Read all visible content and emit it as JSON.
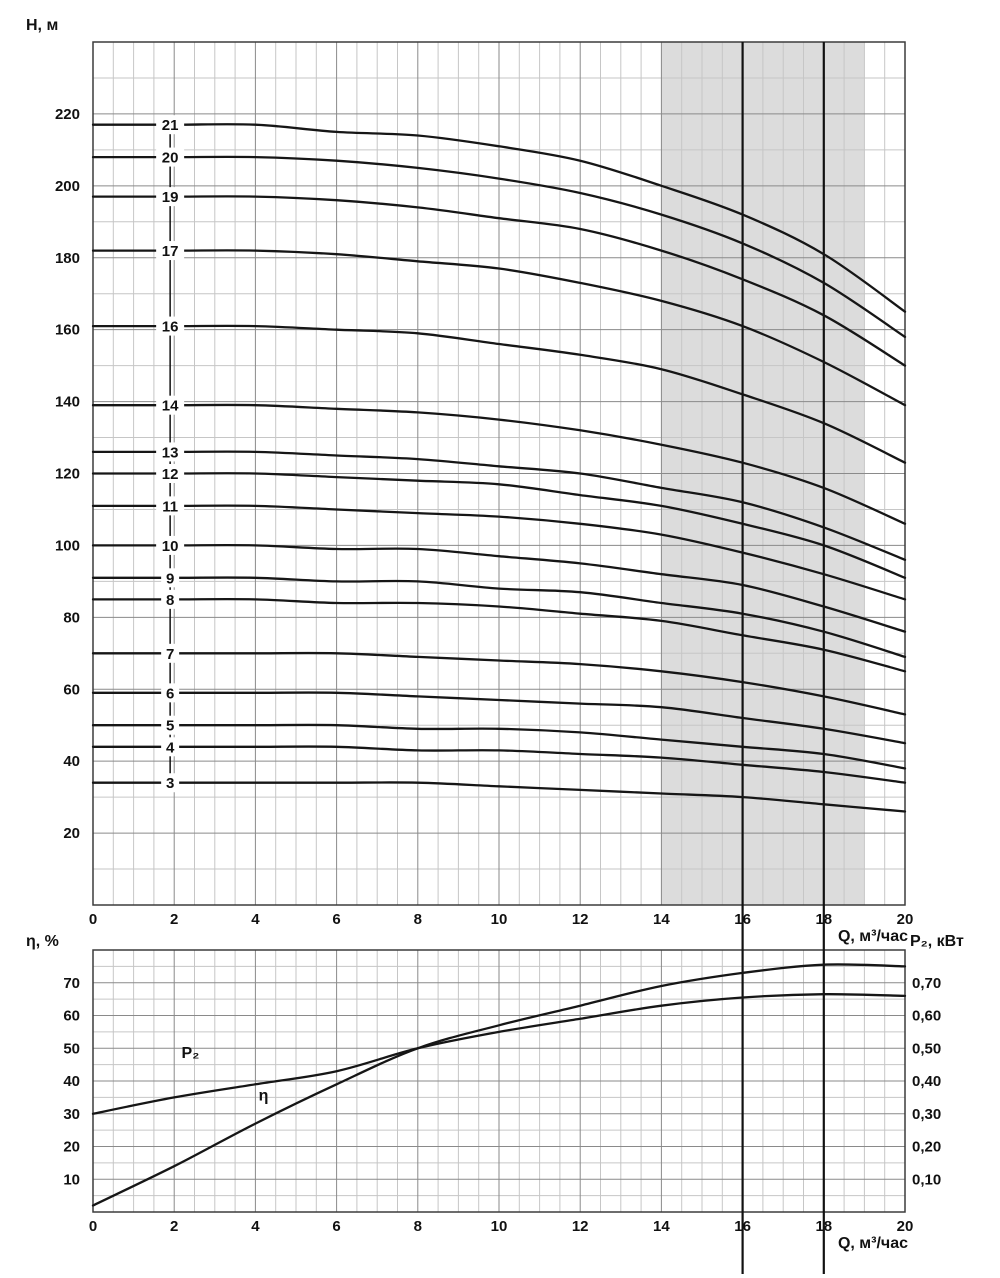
{
  "colors": {
    "background": "#ffffff",
    "curve": "#161616",
    "grid_minor": "#c6c6c6",
    "grid_major": "#8a8a8a",
    "frame": "#3c3c3c",
    "band": "#dcdcdc",
    "marker_line": "#111111",
    "text": "#111111"
  },
  "chart_data": [
    {
      "type": "line",
      "xlabel": "Q, м³/час",
      "ylabel": "H, м",
      "xlim": [
        0,
        20
      ],
      "ylim": [
        0,
        240
      ],
      "grid": true,
      "legend": "stage-count labels on curves",
      "x_ticks": [
        0,
        2,
        4,
        6,
        8,
        10,
        12,
        14,
        16,
        18,
        20
      ],
      "x_minor_step": 0.5,
      "y_ticks": [
        20,
        40,
        60,
        80,
        100,
        120,
        140,
        160,
        180,
        200,
        220
      ],
      "y_minor_step": 10,
      "y_major_step": 20,
      "shaded_band": {
        "x0": 14,
        "x1": 19
      },
      "marker_lines_x": [
        16,
        18
      ],
      "series_label_x": 1.9,
      "x": [
        0,
        2,
        4,
        6,
        8,
        10,
        12,
        14,
        16,
        18,
        20
      ],
      "series": [
        {
          "name": "21",
          "values": [
            217,
            217,
            217,
            215,
            214,
            211,
            207,
            200,
            192,
            181,
            165
          ]
        },
        {
          "name": "20",
          "values": [
            208,
            208,
            208,
            207,
            205,
            202,
            198,
            192,
            184,
            173,
            158
          ]
        },
        {
          "name": "19",
          "values": [
            197,
            197,
            197,
            196,
            194,
            191,
            188,
            182,
            174,
            164,
            150
          ]
        },
        {
          "name": "17",
          "values": [
            182,
            182,
            182,
            181,
            179,
            177,
            173,
            168,
            161,
            151,
            139
          ]
        },
        {
          "name": "16",
          "values": [
            161,
            161,
            161,
            160,
            159,
            156,
            153,
            149,
            142,
            134,
            123
          ]
        },
        {
          "name": "14",
          "values": [
            139,
            139,
            139,
            138,
            137,
            135,
            132,
            128,
            123,
            116,
            106
          ]
        },
        {
          "name": "13",
          "values": [
            126,
            126,
            126,
            125,
            124,
            122,
            120,
            116,
            112,
            105,
            96
          ]
        },
        {
          "name": "12",
          "values": [
            120,
            120,
            120,
            119,
            118,
            117,
            114,
            111,
            106,
            100,
            91
          ]
        },
        {
          "name": "11",
          "values": [
            111,
            111,
            111,
            110,
            109,
            108,
            106,
            103,
            98,
            92,
            85
          ]
        },
        {
          "name": "10",
          "values": [
            100,
            100,
            100,
            99,
            99,
            97,
            95,
            92,
            89,
            83,
            76
          ]
        },
        {
          "name": "9",
          "values": [
            91,
            91,
            91,
            90,
            90,
            88,
            87,
            84,
            81,
            76,
            69
          ]
        },
        {
          "name": "8",
          "values": [
            85,
            85,
            85,
            84,
            84,
            83,
            81,
            79,
            75,
            71,
            65
          ]
        },
        {
          "name": "7",
          "values": [
            70,
            70,
            70,
            70,
            69,
            68,
            67,
            65,
            62,
            58,
            53
          ]
        },
        {
          "name": "6",
          "values": [
            59,
            59,
            59,
            59,
            58,
            57,
            56,
            55,
            52,
            49,
            45
          ]
        },
        {
          "name": "5",
          "values": [
            50,
            50,
            50,
            50,
            49,
            49,
            48,
            46,
            44,
            42,
            38
          ]
        },
        {
          "name": "4",
          "values": [
            44,
            44,
            44,
            44,
            43,
            43,
            42,
            41,
            39,
            37,
            34
          ]
        },
        {
          "name": "3",
          "values": [
            34,
            34,
            34,
            34,
            34,
            33,
            32,
            31,
            30,
            28,
            26
          ]
        }
      ]
    },
    {
      "type": "line",
      "xlabel": "Q, м³/час",
      "ylabel_left": "η, %",
      "ylabel_right": "P₂, кВт",
      "xlim": [
        0,
        20
      ],
      "ylim_left": [
        0,
        80
      ],
      "ylim_right": [
        0,
        0.8
      ],
      "grid": true,
      "x_ticks": [
        0,
        2,
        4,
        6,
        8,
        10,
        12,
        14,
        16,
        18,
        20
      ],
      "x_minor_step": 0.5,
      "y_left_ticks": [
        10,
        20,
        30,
        40,
        50,
        60,
        70
      ],
      "y_right_ticks": [
        {
          "v": 0.1,
          "label": "0,10"
        },
        {
          "v": 0.2,
          "label": "0,20"
        },
        {
          "v": 0.3,
          "label": "0,30"
        },
        {
          "v": 0.4,
          "label": "0,40"
        },
        {
          "v": 0.5,
          "label": "0,50"
        },
        {
          "v": 0.6,
          "label": "0,60"
        },
        {
          "v": 0.7,
          "label": "0,70"
        }
      ],
      "y_minor_step": 5,
      "y_major_step": 10,
      "marker_lines_x": [
        16,
        18
      ],
      "x": [
        0,
        2,
        4,
        6,
        8,
        10,
        12,
        14,
        16,
        18,
        20
      ],
      "series": [
        {
          "name": "η",
          "axis": "left",
          "values": [
            2,
            14,
            27,
            39,
            50,
            57,
            63,
            69,
            73,
            75.5,
            75
          ],
          "label_at": {
            "x": 4.2,
            "y": 34
          }
        },
        {
          "name": "P₂",
          "axis": "right",
          "values": [
            0.3,
            0.35,
            0.39,
            0.43,
            0.5,
            0.55,
            0.59,
            0.63,
            0.655,
            0.665,
            0.66
          ],
          "label_at": {
            "x": 2.4,
            "y": 0.47
          }
        }
      ]
    }
  ]
}
